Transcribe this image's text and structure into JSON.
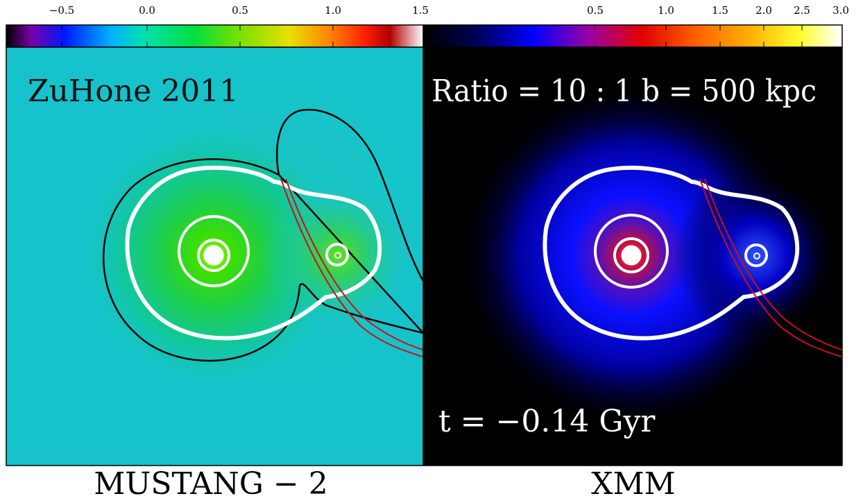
{
  "left_colorbar": {
    "tick_labels": [
      "−0.5",
      "0.0",
      "0.5",
      "1.0",
      "1.5"
    ],
    "stops": [
      "#000000",
      "#7a00a8",
      "#0018ff",
      "#00b0ff",
      "#00e0b0",
      "#00e040",
      "#70e000",
      "#e8e000",
      "#ff8000",
      "#ff2000",
      "#b00000",
      "#ffffff"
    ]
  },
  "right_colorbar": {
    "tick_labels": [
      "0.5",
      "1.0",
      "1.5",
      "2.0",
      "2.5",
      "3.0"
    ],
    "stops": [
      "#000000",
      "#000050",
      "#0000ff",
      "#a000a0",
      "#e00000",
      "#ff6000",
      "#ffb000",
      "#ffff30",
      "#ffffff"
    ]
  },
  "left_panel": {
    "label": "ZuHone 2011",
    "background": "#16c3cc",
    "caption": "MUSTANG − 2"
  },
  "right_panel": {
    "label": "Ratio = 10 : 1  b = 500 kpc",
    "time_label": "t = −0.14 Gyr",
    "background": "#000000",
    "caption": "XMM"
  },
  "colors": {
    "contour_white": "#ffffff",
    "contour_black": "#000000",
    "track_red": "#cc1010"
  }
}
